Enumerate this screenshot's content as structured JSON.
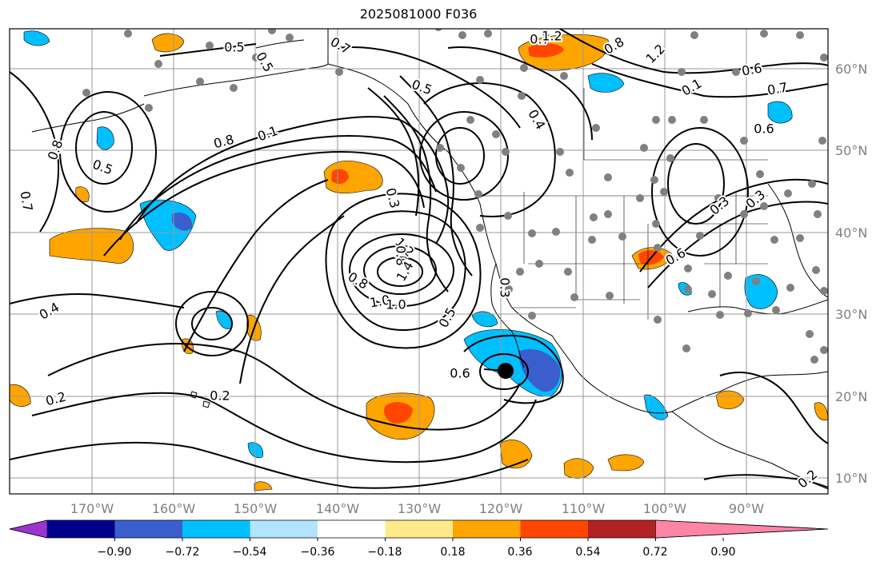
{
  "title": "2025081000 F036",
  "map": {
    "projection": "cylindrical",
    "lon_range": [
      "180°W",
      "80°W"
    ],
    "lat_range": [
      "8°N",
      "66°N"
    ],
    "gridlines": true,
    "coastlines": true,
    "station_markers": "grey-dots",
    "storm_marker": "black-dot"
  },
  "lat_ticks": [
    "60°N",
    "50°N",
    "40°N",
    "30°N",
    "20°N",
    "10°N"
  ],
  "lon_ticks": [
    "170°W",
    "160°W",
    "150°W",
    "140°W",
    "130°W",
    "120°W",
    "110°W",
    "100°W",
    "90°W"
  ],
  "contour_labels": [
    "0.5",
    "0.7",
    "0.5",
    "0.3",
    "0.8",
    "1.2",
    "1.0",
    "0.6",
    "0.7",
    "0.1",
    "0.6",
    "1.2",
    "0.8",
    "0.7",
    "0.4",
    "0.7",
    "0.8",
    "0.5",
    "0.8",
    "0.1",
    "0.3",
    "0.8",
    "1.2",
    "1.4",
    "1.0",
    "0.5",
    "0.6",
    "0.4",
    "0.5",
    "0.2",
    "0.2",
    "0.3",
    "0.6",
    "0.3",
    "0.2"
  ],
  "colorbar": {
    "ticks": [
      "−0.90",
      "−0.72",
      "−0.54",
      "−0.36",
      "−0.18",
      "0.18",
      "0.36",
      "0.54",
      "0.72",
      "0.90"
    ],
    "colors": [
      "#9a35d1",
      "#00008b",
      "#3a5fcd",
      "#00bfff",
      "#b2e3ff",
      "#ffffff",
      "#ffe98a",
      "#ffa500",
      "#ff4500",
      "#b22222",
      "#ff85a6"
    ],
    "extend": "both"
  }
}
